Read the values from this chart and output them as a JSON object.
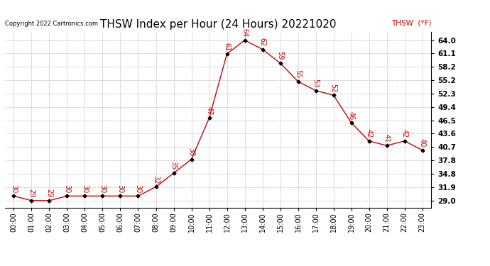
{
  "title": "THSW Index per Hour (24 Hours) 20221020",
  "copyright": "Copyright 2022 Cartronics.com",
  "legend_label": "THSW  (°F)",
  "hours": [
    "00:00",
    "01:00",
    "02:00",
    "03:00",
    "04:00",
    "05:00",
    "06:00",
    "07:00",
    "08:00",
    "09:00",
    "10:00",
    "11:00",
    "12:00",
    "13:00",
    "14:00",
    "15:00",
    "16:00",
    "17:00",
    "18:00",
    "19:00",
    "20:00",
    "21:00",
    "22:00",
    "23:00"
  ],
  "values": [
    30,
    29,
    29,
    30,
    30,
    30,
    30,
    30,
    32,
    35,
    38,
    47,
    61,
    64,
    62,
    59,
    55,
    53,
    52,
    46,
    42,
    41,
    42,
    40
  ],
  "line_color": "#cc0000",
  "marker_color": "#000000",
  "grid_color": "#bbbbbb",
  "bg_color": "#ffffff",
  "title_color": "#000000",
  "copyright_color": "#000000",
  "legend_color": "#cc0000",
  "yticks": [
    29.0,
    31.9,
    34.8,
    37.8,
    40.7,
    43.6,
    46.5,
    49.4,
    52.3,
    55.2,
    58.2,
    61.1,
    64.0
  ],
  "ylim": [
    27.5,
    65.8
  ],
  "title_fontsize": 11,
  "axis_fontsize": 7,
  "label_fontsize": 7,
  "copyright_fontsize": 6,
  "legend_fontsize": 7.5
}
